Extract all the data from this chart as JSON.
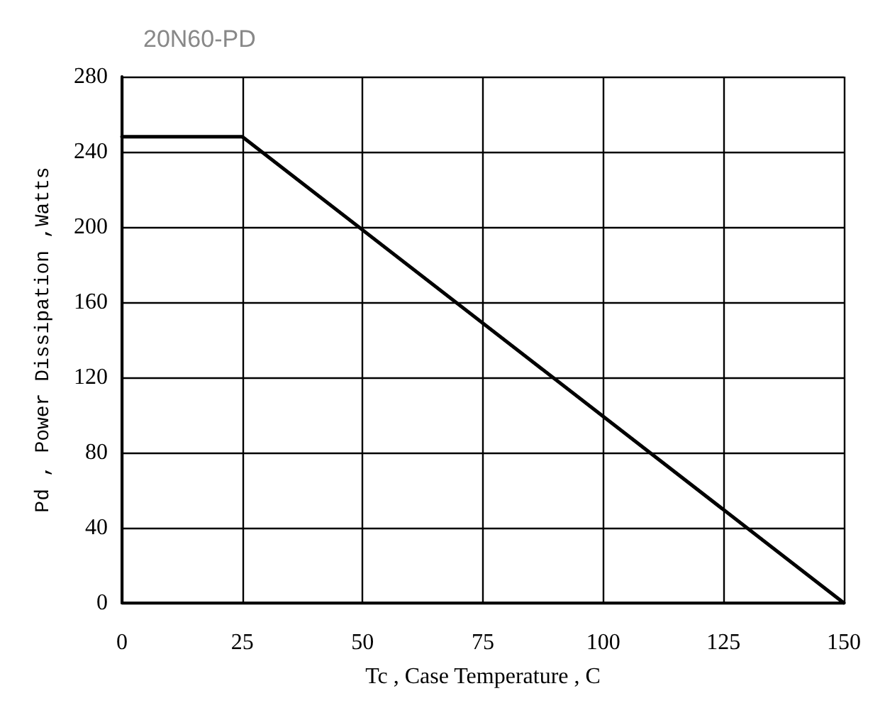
{
  "chart_data": {
    "type": "line",
    "title": "20N60-PD",
    "xlabel": "Tc , Case Temperature , C",
    "ylabel": "Pd , Power Dissipation ,Watts",
    "x": [
      0,
      25,
      150
    ],
    "series": [
      {
        "color": "#000000",
        "values": [
          248,
          248,
          0
        ]
      }
    ],
    "xlim": [
      0,
      150
    ],
    "xticks": [
      0,
      25,
      50,
      75,
      100,
      125,
      150
    ],
    "ylim": [
      0,
      280
    ],
    "yticks": [
      0,
      40,
      80,
      120,
      160,
      200,
      240,
      280
    ],
    "grid": true,
    "marker": "none",
    "line_style": "solid"
  }
}
